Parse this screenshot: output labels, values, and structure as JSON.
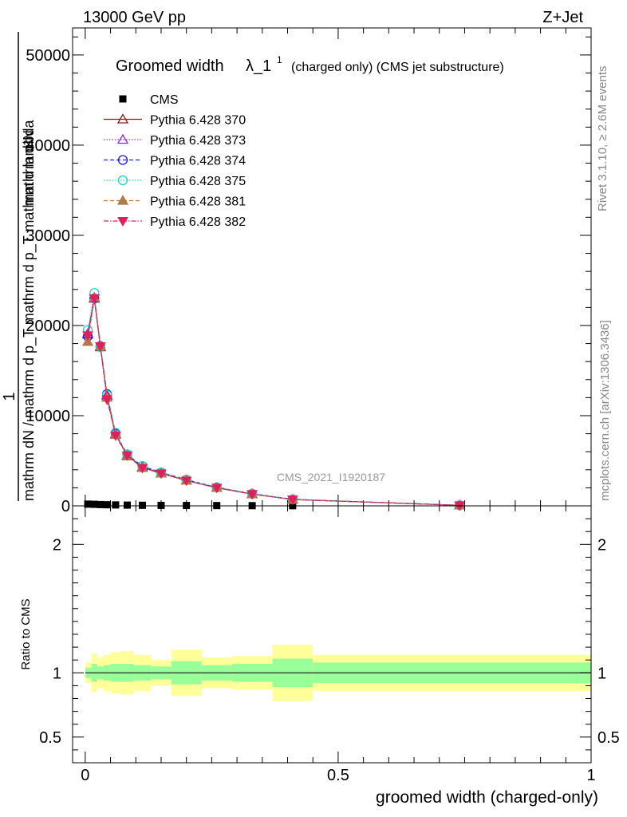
{
  "header": {
    "energy": "13000 GeV pp",
    "process": "Z+Jet"
  },
  "side_labels": {
    "rivet": "Rivet 3.1.10, ≥ 2.6M events",
    "source": "mcplots.cern.ch [arXiv:1306.3436]"
  },
  "watermark": "CMS_2021_I1920187",
  "chart_data": [
    {
      "type": "line",
      "title_main": "Groomed width",
      "title_symbol": "λ_1",
      "title_sup": "1",
      "title_note": "(charged only) (CMS jet substructure)",
      "ylabel_numerator": "1",
      "ylabel_denominator": "mathrm dN / mathrm d p_T mathrm d p_T mathrm d lambda",
      "ylabel_extra": "mathrm d²N",
      "ylim": [
        0,
        53000
      ],
      "xlim": [
        -0.025,
        1.0
      ],
      "y_ticks": [
        "0",
        "10000",
        "20000",
        "30000",
        "40000",
        "50000"
      ],
      "y_tick_values": [
        0,
        10000,
        20000,
        30000,
        40000,
        50000
      ],
      "x": [
        0.005,
        0.018,
        0.03,
        0.043,
        0.06,
        0.083,
        0.113,
        0.15,
        0.2,
        0.26,
        0.33,
        0.41,
        0.74
      ],
      "series": [
        {
          "name": "CMS",
          "marker": "square",
          "color": "#000000",
          "dash": "",
          "values": [
            190,
            170,
            140,
            120,
            100,
            80,
            60,
            50,
            40,
            30,
            20,
            12,
            3
          ]
        },
        {
          "name": "Pythia 6.428 370",
          "marker": "triangle-open",
          "color": "#8b1a1a",
          "dash": "",
          "values": [
            19000,
            23000,
            17600,
            12200,
            7900,
            5600,
            4300,
            3600,
            2800,
            2000,
            1300,
            700,
            60
          ]
        },
        {
          "name": "Pythia 6.428 373",
          "marker": "triangle-open",
          "color": "#8a2be2",
          "dash": "1.5,2",
          "values": [
            19100,
            23100,
            17700,
            12300,
            8000,
            5600,
            4300,
            3600,
            2800,
            2000,
            1300,
            700,
            60
          ]
        },
        {
          "name": "Pythia 6.428 374",
          "marker": "circle-open",
          "color": "#1f1fe0",
          "dash": "5,3",
          "values": [
            18800,
            23000,
            17700,
            12400,
            8000,
            5700,
            4400,
            3700,
            2900,
            2050,
            1350,
            720,
            60
          ]
        },
        {
          "name": "Pythia 6.428 375",
          "marker": "circle-open",
          "color": "#20d0c0",
          "dash": "1.5,2",
          "values": [
            19500,
            23600,
            17600,
            12300,
            8100,
            5700,
            4400,
            3700,
            2900,
            2050,
            1350,
            720,
            60
          ]
        },
        {
          "name": "Pythia 6.428 381",
          "marker": "triangle-filled",
          "color": "#b07a48",
          "dash": "5,3",
          "values": [
            18200,
            23100,
            17700,
            12000,
            7900,
            5500,
            4200,
            3600,
            2800,
            2000,
            1300,
            700,
            60
          ]
        },
        {
          "name": "Pythia 6.428 382",
          "marker": "triangle-down-filled",
          "color": "#e0205a",
          "dash": "6,2,1.5,2",
          "values": [
            18900,
            23000,
            17700,
            11800,
            7800,
            5600,
            4200,
            3600,
            2800,
            2000,
            1300,
            700,
            60
          ]
        }
      ]
    },
    {
      "type": "area",
      "ylabel": "Ratio to CMS",
      "xlabel": "groomed width (charged-only)",
      "ylim": [
        0.3,
        2.3
      ],
      "xlim": [
        -0.025,
        1.0
      ],
      "x_ticks": [
        "0",
        "0.5",
        "1"
      ],
      "x_tick_values": [
        0,
        0.5,
        1
      ],
      "y_ticks": [
        "0.5",
        "1",
        "2"
      ],
      "y_tick_values": [
        0.5,
        1,
        2
      ],
      "reference_line": 1,
      "bins": [
        0,
        0.012,
        0.024,
        0.036,
        0.05,
        0.07,
        0.095,
        0.13,
        0.17,
        0.23,
        0.29,
        0.37,
        0.45,
        1.0
      ],
      "band_green": [
        [
          0.96,
          1.04
        ],
        [
          0.93,
          1.07
        ],
        [
          0.95,
          1.05
        ],
        [
          0.94,
          1.06
        ],
        [
          0.93,
          1.07
        ],
        [
          0.93,
          1.07
        ],
        [
          0.94,
          1.06
        ],
        [
          0.95,
          1.05
        ],
        [
          0.91,
          1.09
        ],
        [
          0.94,
          1.06
        ],
        [
          0.93,
          1.07
        ],
        [
          0.89,
          1.11
        ],
        [
          0.92,
          1.08
        ]
      ],
      "band_yellow": [
        [
          0.92,
          1.08
        ],
        [
          0.85,
          1.15
        ],
        [
          0.88,
          1.12
        ],
        [
          0.86,
          1.14
        ],
        [
          0.84,
          1.16
        ],
        [
          0.83,
          1.17
        ],
        [
          0.86,
          1.14
        ],
        [
          0.9,
          1.1
        ],
        [
          0.82,
          1.18
        ],
        [
          0.88,
          1.12
        ],
        [
          0.87,
          1.13
        ],
        [
          0.78,
          1.22
        ],
        [
          0.86,
          1.14
        ]
      ]
    }
  ]
}
